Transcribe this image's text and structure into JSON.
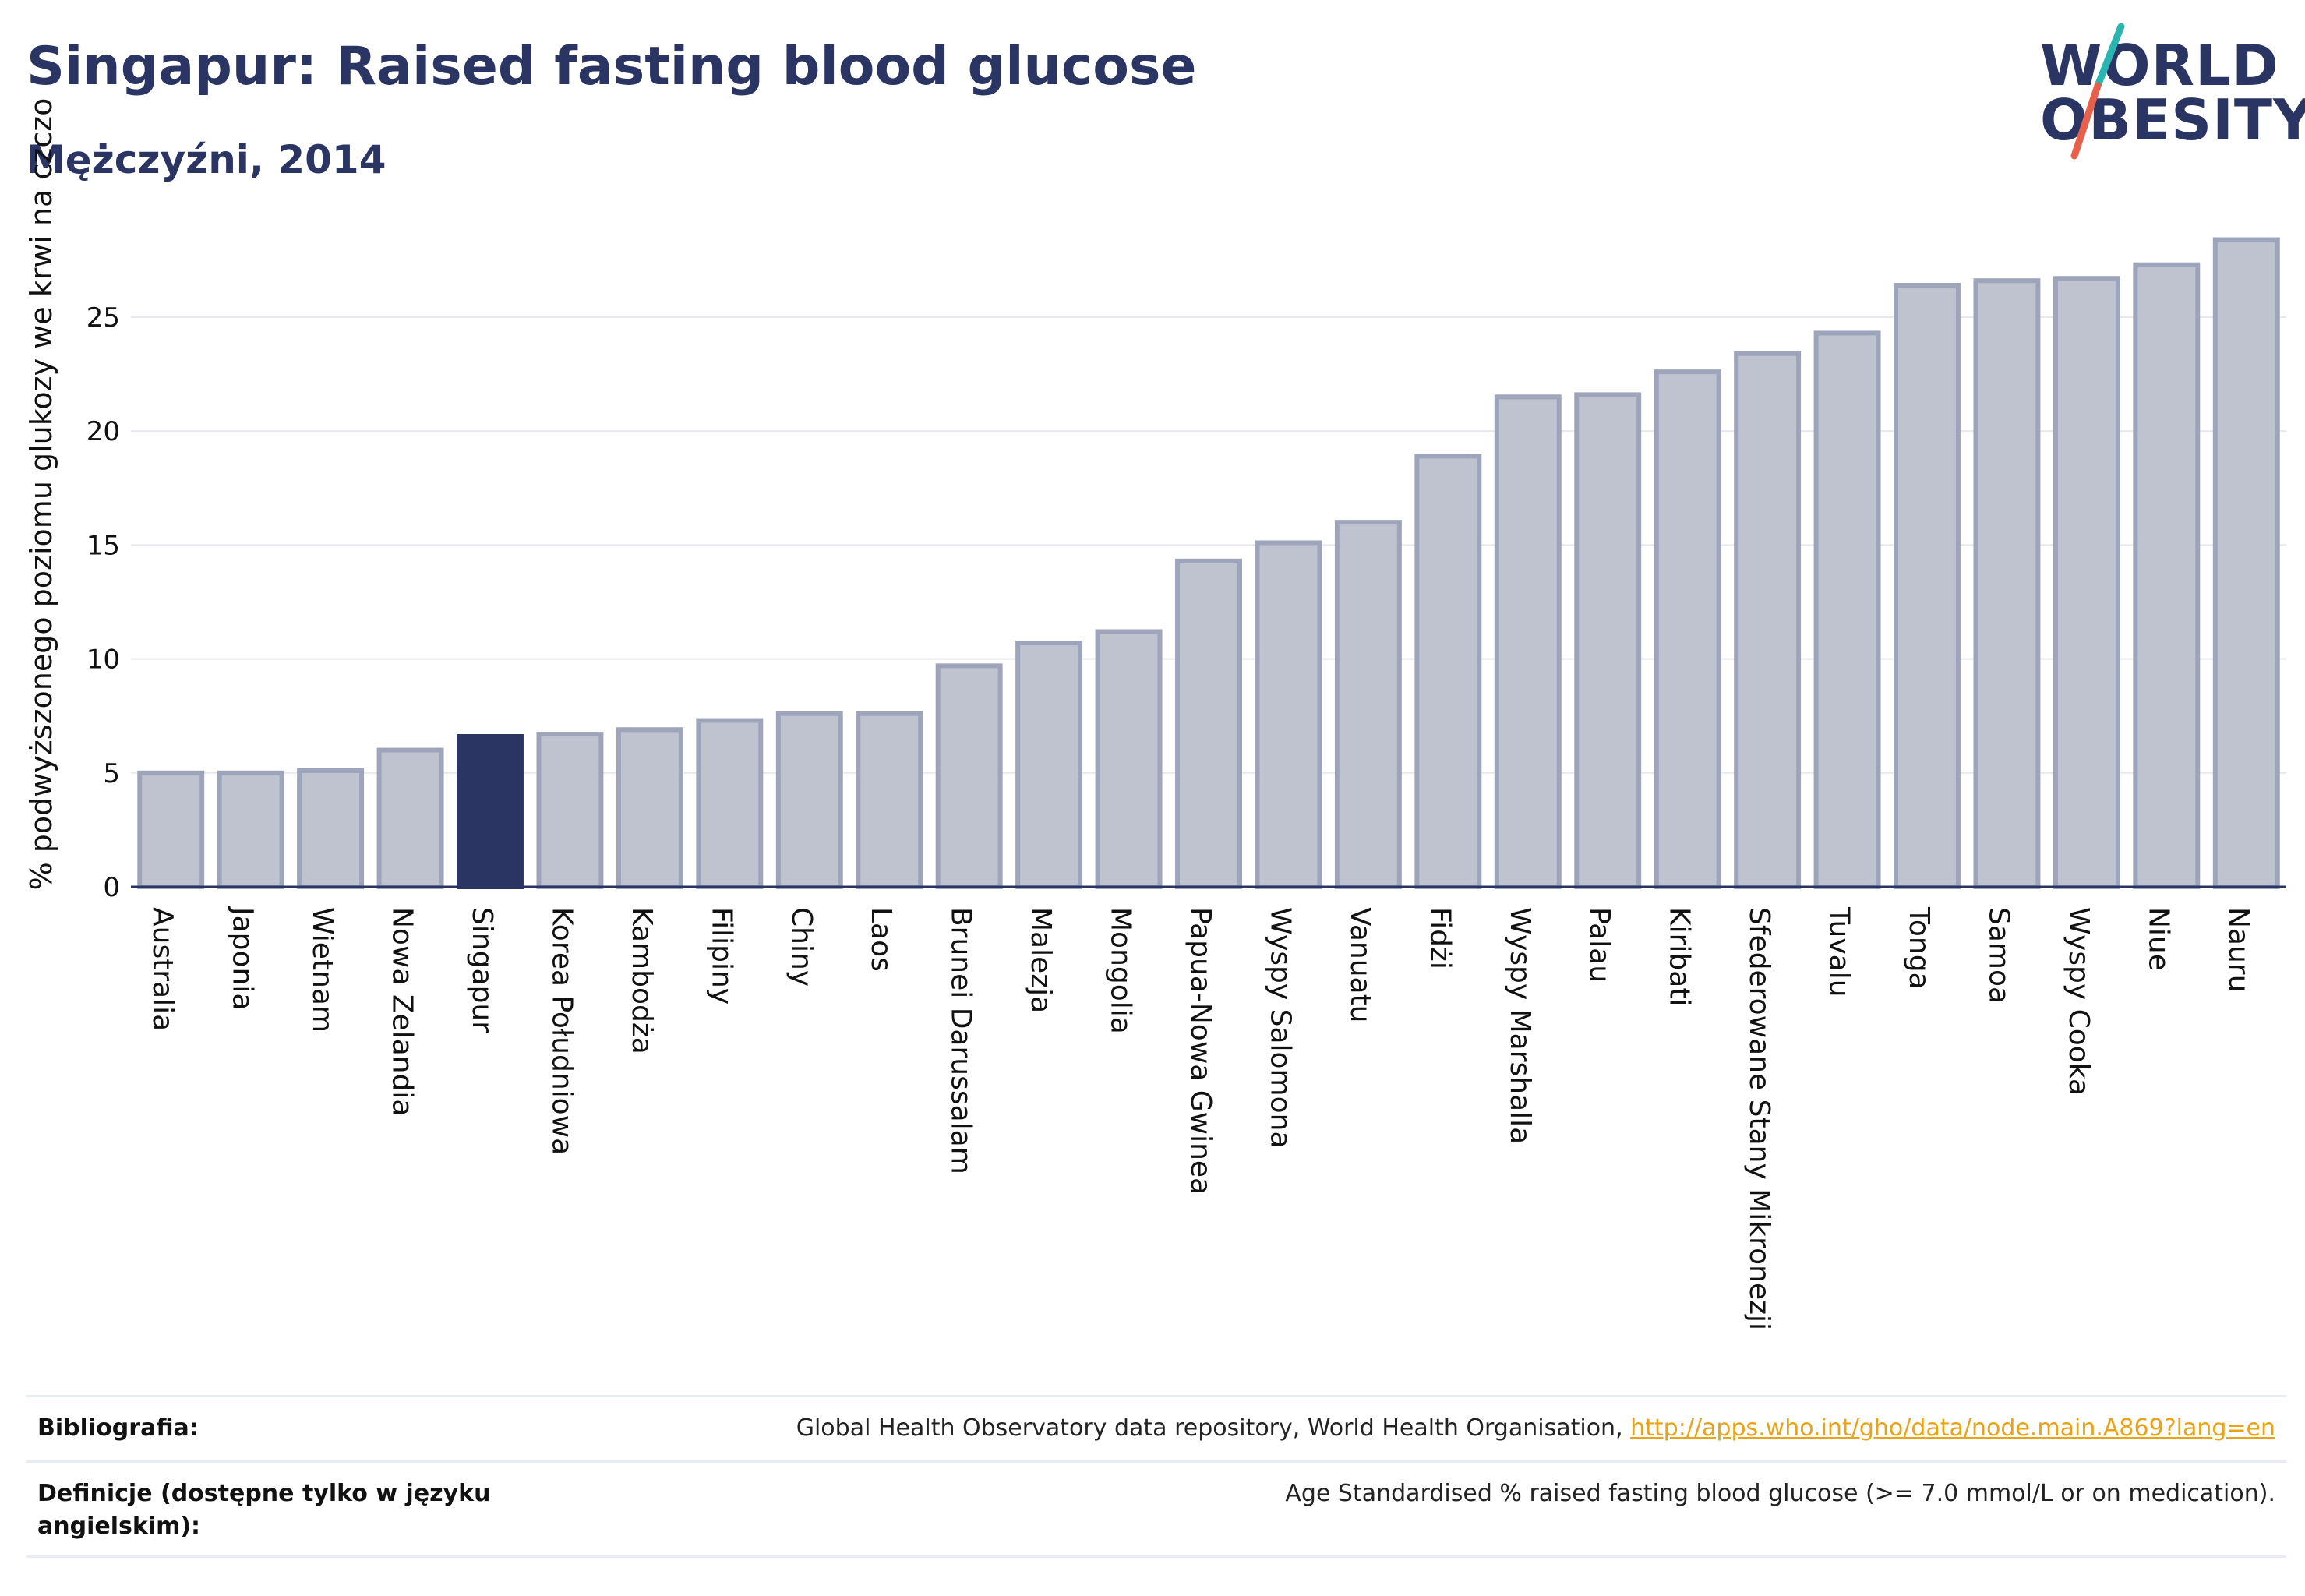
{
  "header": {
    "title": "Singapur: Raised fasting blood glucose",
    "subtitle": "Mężczyźni, 2014"
  },
  "logo": {
    "line1": "WORLD",
    "line2": "OBESITY",
    "colors": {
      "text": "#2b3563",
      "slash_top": "#2bb5b0",
      "slash_bottom": "#e8604c"
    }
  },
  "colors": {
    "bar_default": "#bfc3d0",
    "bar_default_stroke": "#9ea4ba",
    "bar_highlight": "#2b3563",
    "axis": "#2b3563",
    "grid": "#e6e8ee",
    "tick_text": "#111111"
  },
  "chart_data": {
    "type": "bar",
    "title": "",
    "xlabel": "",
    "ylabel": "% podwyższonego poziomu glukozy we krwi na czczo",
    "ylim": [
      0,
      29
    ],
    "yticks": [
      0,
      5,
      10,
      15,
      20,
      25
    ],
    "grid": true,
    "highlight": "Singapur",
    "categories": [
      "Australia",
      "Japonia",
      "Wietnam",
      "Nowa Zelandia",
      "Singapur",
      "Korea Południowa",
      "Kambodża",
      "Filipiny",
      "Chiny",
      "Laos",
      "Brunei Darussalam",
      "Malezja",
      "Mongolia",
      "Papua-Nowa Gwinea",
      "Wyspy Salomona",
      "Vanuatu",
      "Fidżi",
      "Wyspy Marshalla",
      "Palau",
      "Kiribati",
      "Sfederowane Stany Mikronezji",
      "Tuvalu",
      "Tonga",
      "Samoa",
      "Wyspy Cooka",
      "Niue",
      "Nauru"
    ],
    "values": [
      5.0,
      5.0,
      5.1,
      6.0,
      6.6,
      6.7,
      6.9,
      7.3,
      7.6,
      7.6,
      9.7,
      10.7,
      11.2,
      14.3,
      15.1,
      16.0,
      18.9,
      21.5,
      21.6,
      22.6,
      23.4,
      24.3,
      26.4,
      26.6,
      26.7,
      27.3,
      28.4
    ]
  },
  "footer": {
    "bibliography_label": "Bibliografia:",
    "bibliography_text": "Global Health Observatory data repository, World Health Organisation, ",
    "bibliography_link": "http://apps.who.int/gho/data/node.main.A869?lang=en",
    "definitions_label": "Definicje (dostępne tylko w języku angielskim):",
    "definitions_text": "Age Standardised % raised fasting blood glucose (>= 7.0 mmol/L or on medication)."
  }
}
